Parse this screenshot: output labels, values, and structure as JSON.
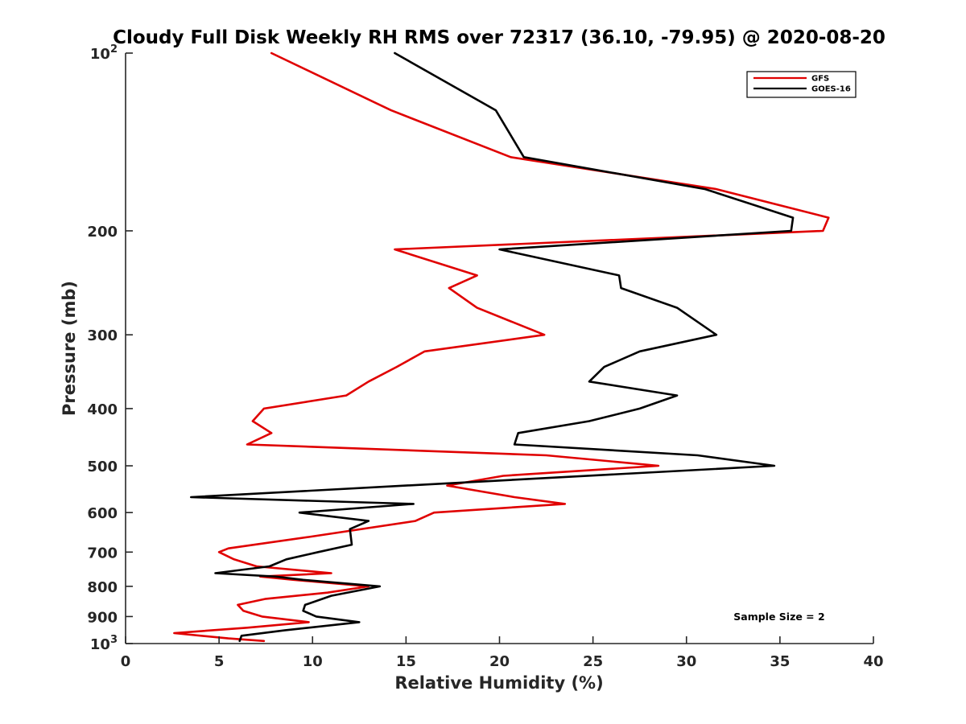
{
  "chart_data": {
    "type": "line",
    "title": "Cloudy Full Disk Weekly RH RMS over 72317 (36.10, -79.95) @ 2020-08-20",
    "xlabel": "Relative Humidity (%)",
    "ylabel": "Pressure (mb)",
    "xlim": [
      0,
      40
    ],
    "ylim": [
      100,
      1000
    ],
    "y_scale": "log",
    "y_reversed": true,
    "grid": false,
    "legend_position": "top-right",
    "x_ticks": [
      "0",
      "5",
      "10",
      "15",
      "20",
      "25",
      "30",
      "35",
      "40"
    ],
    "y_ticks": [
      {
        "value": 100,
        "base": "10",
        "exp": "2"
      },
      {
        "value": 200,
        "text": "200"
      },
      {
        "value": 300,
        "text": "300"
      },
      {
        "value": 400,
        "text": "400"
      },
      {
        "value": 500,
        "text": "500"
      },
      {
        "value": 600,
        "text": "600"
      },
      {
        "value": 700,
        "text": "700"
      },
      {
        "value": 800,
        "text": "800"
      },
      {
        "value": 900,
        "text": "900"
      },
      {
        "value": 1000,
        "base": "10",
        "exp": "3"
      }
    ],
    "annotation": "Sample Size = 2",
    "series": [
      {
        "name": "GFS",
        "color": "#e00000",
        "points": [
          [
            7.8,
            100
          ],
          [
            14.2,
            125
          ],
          [
            20.6,
            150
          ],
          [
            31.6,
            170
          ],
          [
            37.6,
            190
          ],
          [
            37.3,
            200
          ],
          [
            14.4,
            215
          ],
          [
            18.8,
            238
          ],
          [
            17.3,
            250
          ],
          [
            18.8,
            270
          ],
          [
            22.4,
            300
          ],
          [
            16.0,
            320
          ],
          [
            14.5,
            340
          ],
          [
            13.0,
            360
          ],
          [
            11.8,
            380
          ],
          [
            7.4,
            400
          ],
          [
            6.8,
            420
          ],
          [
            7.8,
            440
          ],
          [
            6.5,
            460
          ],
          [
            22.5,
            480
          ],
          [
            28.5,
            500
          ],
          [
            20.2,
            520
          ],
          [
            17.2,
            540
          ],
          [
            20.8,
            565
          ],
          [
            23.5,
            580
          ],
          [
            16.5,
            600
          ],
          [
            15.5,
            620
          ],
          [
            9.8,
            660
          ],
          [
            5.5,
            690
          ],
          [
            5.0,
            700
          ],
          [
            5.8,
            720
          ],
          [
            7.0,
            740
          ],
          [
            11.0,
            760
          ],
          [
            7.2,
            770
          ],
          [
            9.0,
            780
          ],
          [
            13.0,
            800
          ],
          [
            10.8,
            820
          ],
          [
            7.5,
            840
          ],
          [
            6.0,
            860
          ],
          [
            6.3,
            880
          ],
          [
            7.3,
            900
          ],
          [
            9.8,
            920
          ],
          [
            6.5,
            940
          ],
          [
            2.6,
            960
          ],
          [
            5.5,
            980
          ],
          [
            7.4,
            990
          ]
        ]
      },
      {
        "name": "GOES-16",
        "color": "#000000",
        "points": [
          [
            14.4,
            100
          ],
          [
            19.8,
            125
          ],
          [
            21.3,
            150
          ],
          [
            31.0,
            170
          ],
          [
            35.7,
            190
          ],
          [
            35.6,
            200
          ],
          [
            20.0,
            215
          ],
          [
            26.4,
            238
          ],
          [
            26.5,
            250
          ],
          [
            29.5,
            270
          ],
          [
            31.6,
            300
          ],
          [
            27.5,
            320
          ],
          [
            25.6,
            340
          ],
          [
            24.8,
            360
          ],
          [
            29.5,
            380
          ],
          [
            27.5,
            400
          ],
          [
            24.8,
            420
          ],
          [
            21.0,
            440
          ],
          [
            20.8,
            460
          ],
          [
            30.6,
            480
          ],
          [
            34.7,
            500
          ],
          [
            15.0,
            540
          ],
          [
            3.5,
            565
          ],
          [
            15.4,
            580
          ],
          [
            9.3,
            600
          ],
          [
            13.0,
            620
          ],
          [
            12.0,
            640
          ],
          [
            12.1,
            680
          ],
          [
            10.3,
            700
          ],
          [
            8.6,
            720
          ],
          [
            7.7,
            740
          ],
          [
            4.8,
            760
          ],
          [
            8.0,
            770
          ],
          [
            9.5,
            780
          ],
          [
            13.6,
            800
          ],
          [
            11.0,
            830
          ],
          [
            9.6,
            860
          ],
          [
            9.5,
            880
          ],
          [
            10.2,
            900
          ],
          [
            12.5,
            920
          ],
          [
            8.5,
            950
          ],
          [
            6.2,
            970
          ],
          [
            6.1,
            990
          ]
        ]
      }
    ]
  }
}
